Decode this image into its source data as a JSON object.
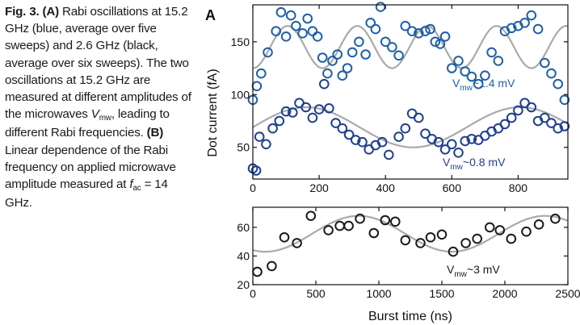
{
  "caption": {
    "fig_label": "Fig. 3.",
    "part_a": "(A)",
    "text_1": "Rabi oscillations at 15.2 GHz (blue, average over five sweeps) and 2.6 GHz (black, average over six sweeps). The two oscillations at 15.2 GHz are measured at different amplitudes of the microwaves",
    "v_symbol": "V",
    "v_sub": "mw",
    "text_2": ", leading to different Rabi frequencies.",
    "part_b": "(B)",
    "text_3": "Linear dependence of the Rabi frequency on applied microwave amplitude measured at",
    "f_symbol": "f",
    "f_sub": "ac",
    "text_4": "= 14 GHz."
  },
  "chart_data": [
    {
      "type": "scatter",
      "panel_label": "A",
      "xlabel": "",
      "ylabel": "Dot current (fA)",
      "xlim": [
        0,
        950
      ],
      "ylim": [
        20,
        185
      ],
      "xticks": [
        0,
        200,
        400,
        600,
        800
      ],
      "yticks": [
        50,
        100,
        150
      ],
      "grid": false,
      "series": [
        {
          "annotation_prefix": "V",
          "annotation_sub": "mw",
          "annotation_suffix": "~1.4 mV",
          "marker_color": "#1f5fa8",
          "fit_color": "#aaaaaa",
          "fit": {
            "offset": 145,
            "amplitude": 20,
            "period": 210,
            "phase_x": 105
          },
          "x": [
            0,
            12,
            25,
            45,
            70,
            85,
            100,
            115,
            130,
            150,
            165,
            180,
            195,
            210,
            225,
            240,
            255,
            270,
            285,
            300,
            320,
            340,
            355,
            370,
            385,
            400,
            420,
            440,
            460,
            480,
            500,
            520,
            535,
            550,
            565,
            580,
            600,
            620,
            640,
            660,
            680,
            700,
            720,
            740,
            760,
            780,
            800,
            820,
            840,
            860,
            880,
            900,
            920,
            940
          ],
          "y": [
            95,
            108,
            120,
            140,
            160,
            178,
            155,
            175,
            165,
            158,
            172,
            160,
            155,
            135,
            120,
            132,
            138,
            118,
            125,
            140,
            150,
            138,
            168,
            162,
            183,
            150,
            145,
            137,
            165,
            160,
            158,
            160,
            162,
            150,
            148,
            155,
            125,
            132,
            122,
            117,
            110,
            118,
            140,
            132,
            160,
            163,
            165,
            168,
            175,
            162,
            130,
            120,
            110,
            95
          ]
        },
        {
          "annotation_prefix": "V",
          "annotation_sub": "mw",
          "annotation_suffix": "~0.8 mV",
          "marker_color": "#1f3f8f",
          "fit_color": "#aaaaaa",
          "fit": {
            "offset": 69,
            "amplitude": 19,
            "period": 645,
            "phase_x": 161
          },
          "x": [
            0,
            10,
            20,
            40,
            60,
            80,
            100,
            120,
            140,
            160,
            180,
            200,
            215,
            230,
            250,
            270,
            290,
            310,
            330,
            350,
            370,
            390,
            410,
            440,
            460,
            480,
            500,
            520,
            540,
            560,
            580,
            600,
            620,
            640,
            660,
            680,
            700,
            720,
            740,
            760,
            780,
            800,
            820,
            840,
            860,
            880,
            900,
            920,
            940
          ],
          "y": [
            30,
            28,
            60,
            53,
            68,
            75,
            84,
            83,
            92,
            88,
            78,
            86,
            110,
            87,
            73,
            68,
            62,
            57,
            55,
            48,
            52,
            55,
            43,
            60,
            68,
            82,
            78,
            63,
            58,
            55,
            48,
            53,
            45,
            56,
            58,
            57,
            61,
            65,
            68,
            72,
            78,
            85,
            92,
            88,
            75,
            78,
            73,
            68,
            70
          ]
        }
      ]
    },
    {
      "type": "scatter",
      "panel_label": "",
      "xlabel": "Burst time (ns)",
      "ylabel": "",
      "xlim": [
        0,
        2500
      ],
      "ylim": [
        20,
        74
      ],
      "xticks": [
        0,
        500,
        1000,
        1500,
        2000,
        2500
      ],
      "yticks": [
        20,
        40,
        60
      ],
      "grid": false,
      "series": [
        {
          "annotation_prefix": "V",
          "annotation_sub": "mw",
          "annotation_suffix": "~3 mV",
          "marker_color": "#1a1a1a",
          "fit_color": "#aaaaaa",
          "fit": {
            "offset": 55.5,
            "amplitude": 12.5,
            "period": 1480,
            "phase_x": 840
          },
          "x": [
            35,
            150,
            250,
            350,
            460,
            600,
            690,
            760,
            850,
            960,
            1050,
            1130,
            1210,
            1330,
            1410,
            1500,
            1590,
            1690,
            1780,
            1880,
            1960,
            2050,
            2170,
            2270,
            2400
          ],
          "y": [
            29,
            33,
            53,
            49,
            68,
            58,
            61,
            61,
            66,
            56,
            65,
            64,
            51,
            49,
            53,
            55,
            43,
            49,
            52,
            60,
            58,
            52,
            57,
            62,
            66
          ]
        }
      ]
    }
  ]
}
